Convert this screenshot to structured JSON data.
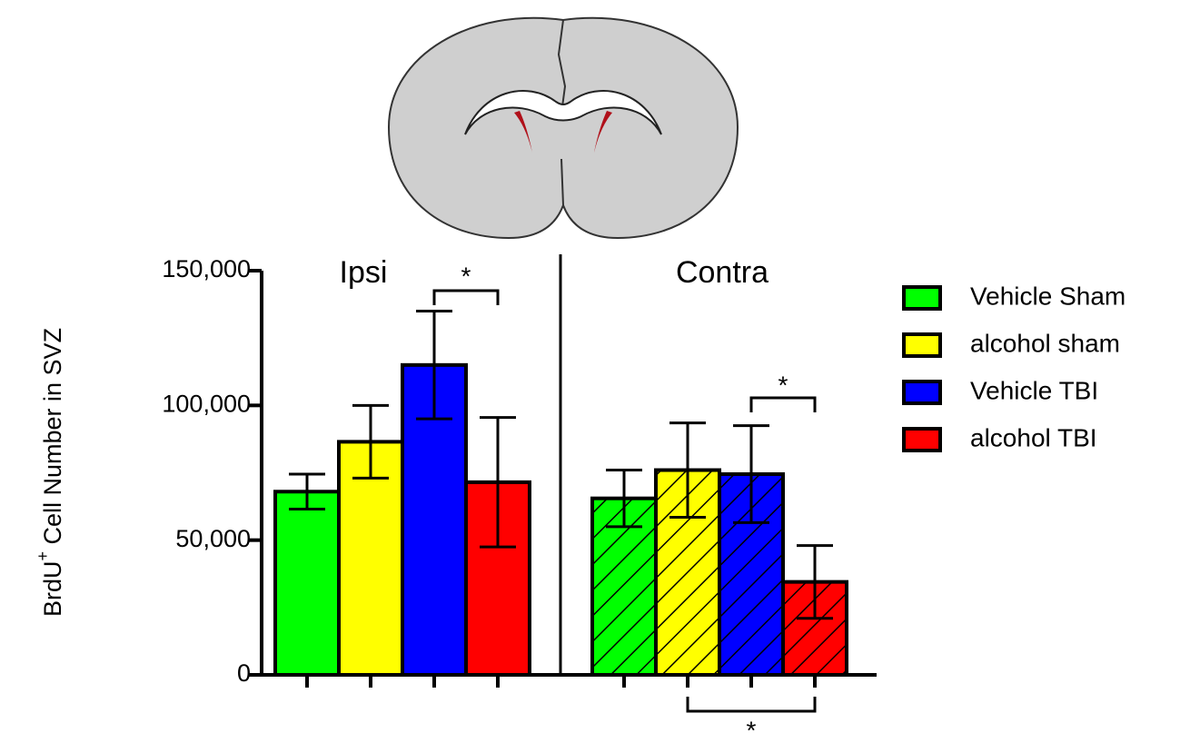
{
  "chart_data": {
    "type": "bar",
    "y_label": {
      "base": "BrdU",
      "sup": "+",
      "rest": " Cell Number in SVZ"
    },
    "categories": [
      "Ipsi",
      "Contra"
    ],
    "hatched": [
      false,
      true
    ],
    "series": [
      {
        "name": "Vehicle Sham",
        "color": "#00ff00",
        "values": [
          68000,
          65500
        ],
        "errors": [
          6500,
          10500
        ]
      },
      {
        "name": "alcohol sham",
        "color": "#ffff00",
        "values": [
          86500,
          76000
        ],
        "errors": [
          13500,
          17500
        ]
      },
      {
        "name": "Vehicle TBI",
        "color": "#0000ff",
        "values": [
          115000,
          74500
        ],
        "errors": [
          20000,
          18000
        ]
      },
      {
        "name": "alcohol TBI",
        "color": "#ff0000",
        "values": [
          71500,
          34500
        ],
        "errors": [
          24000,
          13500
        ]
      }
    ],
    "ylim": [
      0,
      150000
    ],
    "yticks": [
      {
        "value": 0,
        "label": "0"
      },
      {
        "value": 50000,
        "label": "50,000"
      },
      {
        "value": 100000,
        "label": "100,000"
      },
      {
        "value": 150000,
        "label": "150,000"
      }
    ],
    "annotations": [
      {
        "text": "*",
        "group": 0,
        "from": 2,
        "to": 3
      },
      {
        "text": "*",
        "group": 1,
        "from": 2,
        "to": 3
      },
      {
        "text": "*",
        "group": 1,
        "from": 1,
        "to": 3
      }
    ],
    "legend": "right"
  }
}
